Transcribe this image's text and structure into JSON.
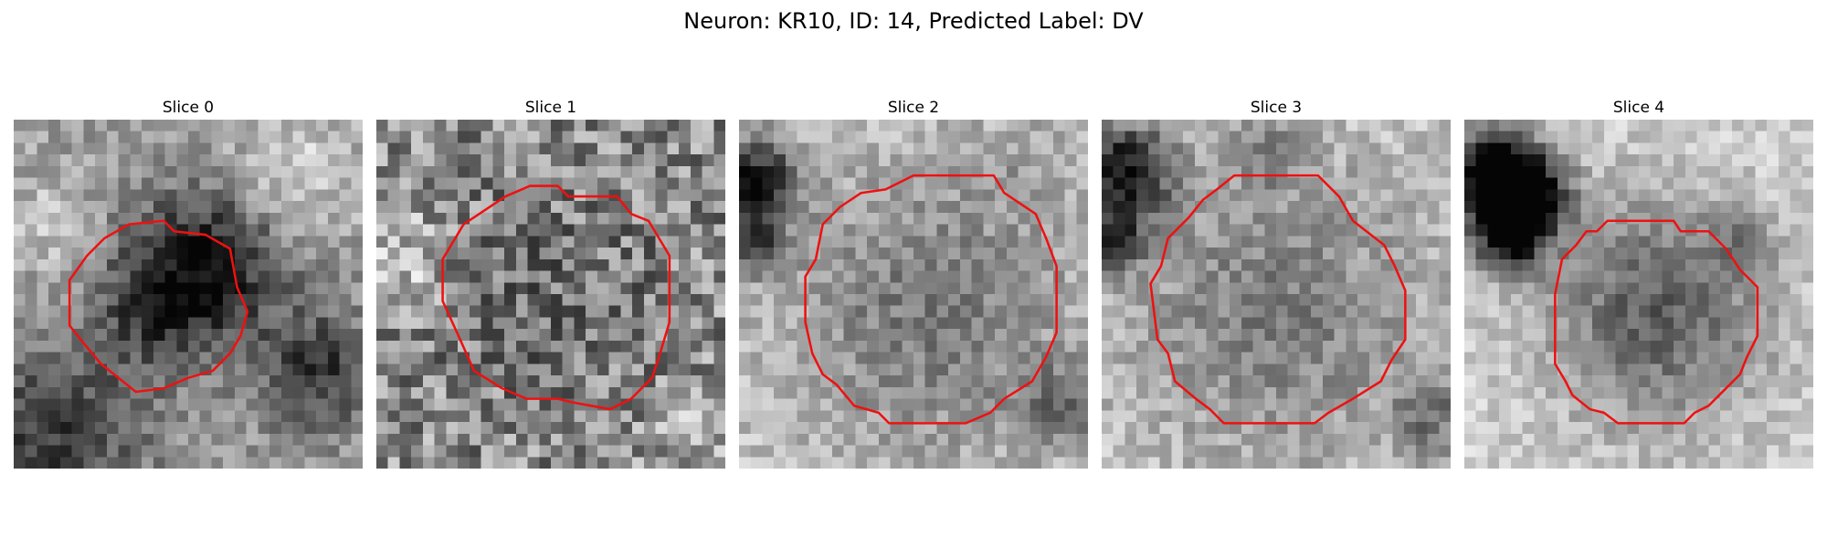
{
  "figure": {
    "title": "Neuron: KR10, ID: 14, Predicted Label: DV"
  },
  "panels": [
    {
      "title": "Slice 0",
      "seed": 11,
      "base": 0.62,
      "grain": 0.3,
      "blobs": [
        [
          0.55,
          0.42,
          0.16,
          -0.55
        ],
        [
          0.4,
          0.56,
          0.12,
          -0.25
        ],
        [
          0.88,
          0.72,
          0.12,
          -0.4
        ],
        [
          0.12,
          0.9,
          0.18,
          -0.4
        ],
        [
          0.8,
          0.15,
          0.14,
          0.2
        ],
        [
          0.1,
          0.3,
          0.1,
          0.15
        ]
      ],
      "contour": [
        [
          0.33,
          0.3
        ],
        [
          0.43,
          0.29
        ],
        [
          0.46,
          0.32
        ],
        [
          0.55,
          0.33
        ],
        [
          0.62,
          0.37
        ],
        [
          0.64,
          0.48
        ],
        [
          0.67,
          0.55
        ],
        [
          0.65,
          0.62
        ],
        [
          0.62,
          0.67
        ],
        [
          0.57,
          0.72
        ],
        [
          0.5,
          0.74
        ],
        [
          0.43,
          0.77
        ],
        [
          0.35,
          0.78
        ],
        [
          0.3,
          0.74
        ],
        [
          0.25,
          0.7
        ],
        [
          0.2,
          0.64
        ],
        [
          0.16,
          0.59
        ],
        [
          0.16,
          0.46
        ],
        [
          0.21,
          0.39
        ],
        [
          0.26,
          0.34
        ]
      ]
    },
    {
      "title": "Slice 1",
      "seed": 29,
      "base": 0.55,
      "grain": 0.55,
      "blobs": [
        [
          0.5,
          0.52,
          0.22,
          -0.12
        ],
        [
          0.08,
          0.4,
          0.1,
          0.2
        ],
        [
          0.9,
          0.88,
          0.12,
          0.1
        ]
      ],
      "contour": [
        [
          0.44,
          0.19
        ],
        [
          0.52,
          0.19
        ],
        [
          0.55,
          0.22
        ],
        [
          0.69,
          0.22
        ],
        [
          0.73,
          0.27
        ],
        [
          0.78,
          0.29
        ],
        [
          0.84,
          0.39
        ],
        [
          0.84,
          0.58
        ],
        [
          0.81,
          0.68
        ],
        [
          0.79,
          0.74
        ],
        [
          0.73,
          0.8
        ],
        [
          0.67,
          0.83
        ],
        [
          0.56,
          0.81
        ],
        [
          0.52,
          0.8
        ],
        [
          0.43,
          0.8
        ],
        [
          0.36,
          0.77
        ],
        [
          0.28,
          0.72
        ],
        [
          0.24,
          0.63
        ],
        [
          0.19,
          0.52
        ],
        [
          0.19,
          0.4
        ],
        [
          0.25,
          0.3
        ],
        [
          0.31,
          0.26
        ],
        [
          0.37,
          0.22
        ]
      ]
    },
    {
      "title": "Slice 2",
      "seed": 47,
      "base": 0.78,
      "grain": 0.28,
      "blobs": [
        [
          0.55,
          0.55,
          0.3,
          -0.3
        ],
        [
          0.04,
          0.18,
          0.09,
          -0.7
        ],
        [
          0.04,
          0.36,
          0.06,
          -0.45
        ],
        [
          0.93,
          0.82,
          0.08,
          -0.35
        ],
        [
          0.82,
          0.12,
          0.1,
          -0.1
        ]
      ],
      "contour": [
        [
          0.5,
          0.16
        ],
        [
          0.73,
          0.16
        ],
        [
          0.76,
          0.21
        ],
        [
          0.85,
          0.27
        ],
        [
          0.88,
          0.34
        ],
        [
          0.91,
          0.42
        ],
        [
          0.91,
          0.61
        ],
        [
          0.88,
          0.68
        ],
        [
          0.84,
          0.75
        ],
        [
          0.76,
          0.8
        ],
        [
          0.72,
          0.84
        ],
        [
          0.65,
          0.87
        ],
        [
          0.43,
          0.87
        ],
        [
          0.4,
          0.84
        ],
        [
          0.33,
          0.82
        ],
        [
          0.28,
          0.76
        ],
        [
          0.24,
          0.73
        ],
        [
          0.21,
          0.67
        ],
        [
          0.19,
          0.58
        ],
        [
          0.19,
          0.45
        ],
        [
          0.22,
          0.4
        ],
        [
          0.24,
          0.3
        ],
        [
          0.29,
          0.25
        ],
        [
          0.35,
          0.21
        ],
        [
          0.42,
          0.2
        ]
      ]
    },
    {
      "title": "Slice 3",
      "seed": 63,
      "base": 0.78,
      "grain": 0.28,
      "blobs": [
        [
          0.5,
          0.55,
          0.31,
          -0.28
        ],
        [
          0.06,
          0.15,
          0.1,
          -0.7
        ],
        [
          0.04,
          0.35,
          0.06,
          -0.45
        ],
        [
          0.95,
          0.85,
          0.08,
          -0.3
        ],
        [
          0.47,
          0.08,
          0.08,
          -0.2
        ]
      ],
      "contour": [
        [
          0.38,
          0.16
        ],
        [
          0.62,
          0.16
        ],
        [
          0.68,
          0.22
        ],
        [
          0.72,
          0.29
        ],
        [
          0.81,
          0.36
        ],
        [
          0.84,
          0.42
        ],
        [
          0.87,
          0.49
        ],
        [
          0.87,
          0.63
        ],
        [
          0.83,
          0.69
        ],
        [
          0.8,
          0.75
        ],
        [
          0.72,
          0.8
        ],
        [
          0.65,
          0.84
        ],
        [
          0.61,
          0.87
        ],
        [
          0.35,
          0.87
        ],
        [
          0.31,
          0.83
        ],
        [
          0.27,
          0.8
        ],
        [
          0.21,
          0.75
        ],
        [
          0.19,
          0.67
        ],
        [
          0.16,
          0.63
        ],
        [
          0.14,
          0.47
        ],
        [
          0.17,
          0.42
        ],
        [
          0.19,
          0.34
        ],
        [
          0.25,
          0.28
        ],
        [
          0.29,
          0.23
        ],
        [
          0.33,
          0.2
        ]
      ]
    },
    {
      "title": "Slice 4",
      "seed": 81,
      "base": 0.82,
      "grain": 0.24,
      "blobs": [
        [
          0.55,
          0.55,
          0.23,
          -0.45
        ],
        [
          0.08,
          0.16,
          0.1,
          -0.85
        ],
        [
          0.18,
          0.22,
          0.08,
          -0.75
        ],
        [
          0.13,
          0.34,
          0.07,
          -0.7
        ],
        [
          0.8,
          0.35,
          0.06,
          -0.25
        ]
      ],
      "contour": [
        [
          0.41,
          0.29
        ],
        [
          0.6,
          0.29
        ],
        [
          0.62,
          0.32
        ],
        [
          0.7,
          0.32
        ],
        [
          0.75,
          0.37
        ],
        [
          0.79,
          0.43
        ],
        [
          0.84,
          0.48
        ],
        [
          0.84,
          0.62
        ],
        [
          0.81,
          0.68
        ],
        [
          0.79,
          0.73
        ],
        [
          0.74,
          0.78
        ],
        [
          0.7,
          0.82
        ],
        [
          0.66,
          0.84
        ],
        [
          0.63,
          0.87
        ],
        [
          0.44,
          0.87
        ],
        [
          0.4,
          0.84
        ],
        [
          0.36,
          0.83
        ],
        [
          0.31,
          0.79
        ],
        [
          0.29,
          0.75
        ],
        [
          0.26,
          0.7
        ],
        [
          0.26,
          0.5
        ],
        [
          0.28,
          0.4
        ],
        [
          0.32,
          0.36
        ],
        [
          0.35,
          0.32
        ],
        [
          0.38,
          0.32
        ]
      ]
    }
  ],
  "colors": {
    "contour": "#ee1111"
  }
}
